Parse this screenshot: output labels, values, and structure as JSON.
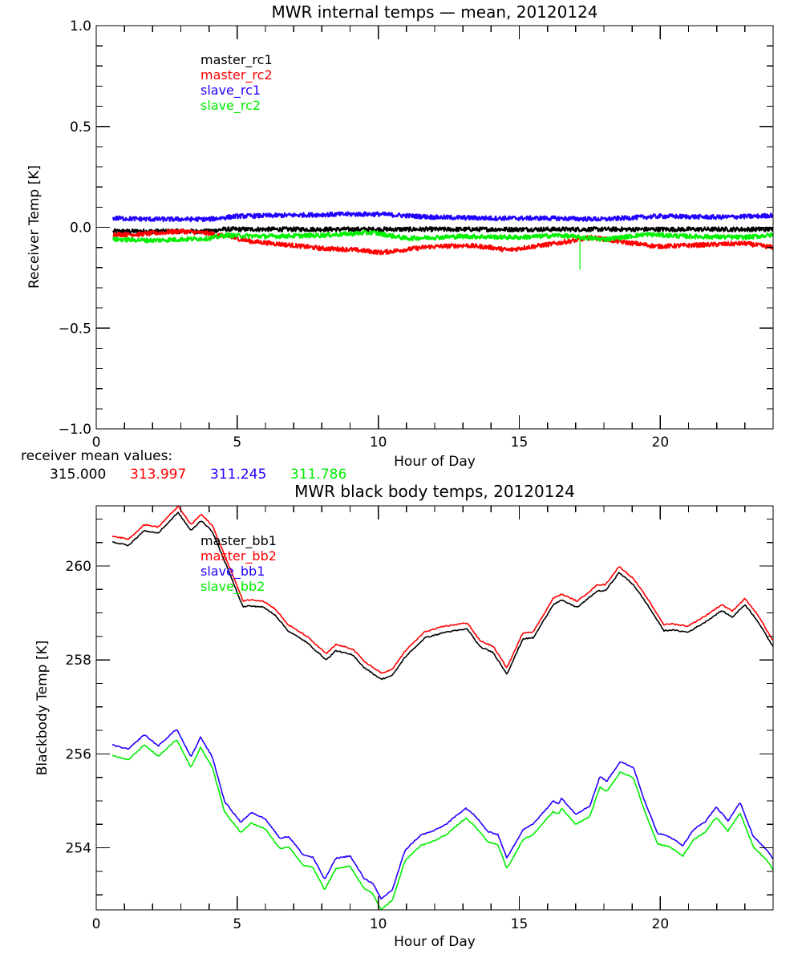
{
  "chart_data": [
    {
      "type": "line",
      "title": "MWR internal temps — mean, 20120124",
      "xlabel": "Hour of Day",
      "ylabel": "Receiver Temp [K]",
      "xlim": [
        0,
        24
      ],
      "ylim": [
        -1.0,
        1.0
      ],
      "xticks": [
        0,
        5,
        10,
        15,
        20
      ],
      "xtick_labels": [
        "0",
        "5",
        "10",
        "15",
        "20"
      ],
      "xminor_step": 1,
      "yticks": [
        -1.0,
        -0.5,
        0.0,
        0.5,
        1.0
      ],
      "ytick_labels": [
        "−1.0",
        "−0.5",
        "0.0",
        "0.5",
        "1.0"
      ],
      "yminor_step": 0.1,
      "grid": false,
      "legend_position": "top-left",
      "noisy": true,
      "series": [
        {
          "name": "master_rc1",
          "color": "#000000",
          "x": [
            0.6,
            2,
            4,
            4.5,
            6,
            8,
            10,
            12,
            14,
            16,
            18,
            20,
            22,
            24
          ],
          "y": [
            -0.02,
            -0.02,
            -0.02,
            -0.01,
            -0.01,
            -0.01,
            -0.01,
            -0.01,
            -0.01,
            -0.01,
            -0.01,
            -0.01,
            -0.01,
            -0.01
          ]
        },
        {
          "name": "master_rc2",
          "color": "#ff0000",
          "x": [
            0.6,
            1.5,
            3,
            4,
            4.6,
            5.5,
            7,
            8,
            9,
            10.1,
            11,
            11.8,
            13.1,
            14,
            14.6,
            15.5,
            16.4,
            17.6,
            18.5,
            19.9,
            21,
            22,
            23,
            24
          ],
          "y": [
            -0.035,
            -0.035,
            -0.02,
            -0.03,
            -0.045,
            -0.07,
            -0.09,
            -0.105,
            -0.11,
            -0.125,
            -0.11,
            -0.097,
            -0.09,
            -0.1,
            -0.113,
            -0.095,
            -0.078,
            -0.05,
            -0.07,
            -0.095,
            -0.09,
            -0.085,
            -0.08,
            -0.1
          ]
        },
        {
          "name": "slave_rc1",
          "color": "#2200ff",
          "x": [
            0.6,
            2,
            4,
            5,
            7,
            9,
            10,
            12,
            14,
            16,
            18,
            20,
            22,
            23.5,
            24
          ],
          "y": [
            0.045,
            0.04,
            0.04,
            0.055,
            0.06,
            0.065,
            0.065,
            0.05,
            0.045,
            0.045,
            0.04,
            0.055,
            0.05,
            0.055,
            0.06
          ]
        },
        {
          "name": "slave_rc2",
          "color": "#00ee00",
          "x": [
            0.6,
            2,
            4,
            4.6,
            6,
            8,
            9.8,
            11,
            13,
            15,
            16.4,
            18,
            19.5,
            21,
            23,
            24
          ],
          "y": [
            -0.06,
            -0.065,
            -0.055,
            -0.04,
            -0.045,
            -0.04,
            -0.026,
            -0.055,
            -0.045,
            -0.05,
            -0.04,
            -0.06,
            -0.035,
            -0.045,
            -0.05,
            -0.038
          ]
        }
      ],
      "spike": {
        "series": "slave_rc2",
        "x": 17.15,
        "y_from": -0.06,
        "y_to": -0.21
      },
      "annotation": {
        "label": "receiver mean values:",
        "values": [
          {
            "text": "315.000",
            "color": "#000000"
          },
          {
            "text": "313.997",
            "color": "#ff0000"
          },
          {
            "text": "311.245",
            "color": "#2200ff"
          },
          {
            "text": "311.786",
            "color": "#00ee00"
          }
        ]
      }
    },
    {
      "type": "line",
      "title": "MWR black body temps, 20120124",
      "xlabel": "Hour of Day",
      "ylabel": "Blackbody Temp [K]",
      "xlim": [
        0,
        24
      ],
      "ylim": [
        252.68,
        261.28
      ],
      "xticks": [
        0,
        5,
        10,
        15,
        20
      ],
      "xtick_labels": [
        "0",
        "5",
        "10",
        "15",
        "20"
      ],
      "xminor_step": 1,
      "yticks": [
        254,
        256,
        258,
        260
      ],
      "ytick_labels": [
        "254",
        "256",
        "258",
        "260"
      ],
      "yminor_step": 0.5,
      "grid": false,
      "legend_position": "top-left",
      "noisy": false,
      "series": [
        {
          "name": "master_bb1",
          "color": "#000000",
          "x": [
            0.57,
            1.14,
            1.7,
            2.2,
            2.9,
            3.36,
            3.72,
            4.12,
            4.55,
            4.92,
            5.2,
            5.4,
            5.9,
            6.34,
            6.8,
            7.45,
            8.16,
            8.5,
            9.1,
            9.5,
            10.1,
            10.5,
            10.95,
            11.65,
            12.37,
            13.16,
            13.6,
            14.07,
            14.56,
            15.13,
            15.5,
            16.2,
            16.5,
            17.06,
            17.77,
            18.05,
            18.54,
            19.05,
            19.56,
            20.13,
            20.4,
            20.98,
            21.6,
            22.18,
            22.55,
            23.0,
            23.45,
            24.0
          ],
          "y": [
            260.51,
            260.44,
            260.75,
            260.7,
            261.14,
            260.75,
            260.97,
            260.73,
            260.1,
            259.56,
            259.13,
            259.15,
            259.13,
            258.96,
            258.62,
            258.38,
            258.0,
            258.2,
            258.1,
            257.84,
            257.59,
            257.67,
            258.06,
            258.47,
            258.59,
            258.66,
            258.28,
            258.16,
            257.7,
            258.45,
            258.47,
            259.18,
            259.27,
            259.12,
            259.47,
            259.47,
            259.86,
            259.6,
            259.16,
            258.62,
            258.64,
            258.59,
            258.81,
            259.05,
            258.91,
            259.18,
            258.83,
            258.28
          ]
        },
        {
          "name": "master_bb2",
          "color": "#ff0000",
          "x": [
            0.57,
            1.14,
            1.7,
            2.2,
            2.9,
            3.36,
            3.72,
            4.12,
            4.55,
            4.92,
            5.2,
            5.4,
            5.9,
            6.34,
            6.8,
            7.45,
            8.16,
            8.5,
            9.1,
            9.5,
            10.1,
            10.5,
            10.95,
            11.65,
            12.37,
            13.16,
            13.6,
            14.07,
            14.56,
            15.13,
            15.5,
            16.2,
            16.5,
            17.06,
            17.77,
            18.05,
            18.54,
            19.05,
            19.56,
            20.13,
            20.4,
            20.98,
            21.6,
            22.18,
            22.55,
            23.0,
            23.45,
            24.0
          ],
          "y": [
            260.64,
            260.57,
            260.88,
            260.83,
            261.27,
            260.88,
            261.1,
            260.86,
            260.23,
            259.69,
            259.26,
            259.28,
            259.26,
            259.09,
            258.75,
            258.51,
            258.13,
            258.33,
            258.23,
            257.97,
            257.72,
            257.8,
            258.19,
            258.6,
            258.72,
            258.79,
            258.41,
            258.29,
            257.83,
            258.58,
            258.6,
            259.31,
            259.4,
            259.25,
            259.6,
            259.6,
            259.99,
            259.73,
            259.29,
            258.75,
            258.77,
            258.72,
            258.94,
            259.18,
            259.04,
            259.31,
            258.96,
            258.41
          ]
        },
        {
          "name": "slave_bb1",
          "color": "#2200ff",
          "x": [
            0.57,
            1.14,
            1.7,
            2.2,
            2.85,
            3.36,
            3.7,
            4.12,
            4.55,
            4.83,
            5.12,
            5.5,
            6.0,
            6.5,
            6.83,
            7.34,
            7.68,
            8.1,
            8.5,
            9.0,
            9.5,
            9.8,
            10.1,
            10.5,
            10.95,
            11.5,
            11.95,
            12.4,
            13.1,
            13.4,
            13.9,
            14.24,
            14.56,
            15.13,
            15.5,
            16.2,
            16.4,
            16.5,
            17.0,
            17.5,
            17.86,
            18.1,
            18.57,
            19.05,
            19.42,
            19.9,
            20.33,
            20.8,
            21.18,
            21.6,
            21.98,
            22.4,
            22.83,
            23.3,
            23.74,
            24.0
          ],
          "y": [
            256.19,
            256.1,
            256.41,
            256.17,
            256.53,
            255.93,
            256.36,
            255.93,
            254.99,
            254.77,
            254.55,
            254.75,
            254.62,
            254.21,
            254.24,
            253.85,
            253.8,
            253.33,
            253.78,
            253.83,
            253.35,
            253.25,
            252.91,
            253.11,
            253.95,
            254.27,
            254.36,
            254.5,
            254.85,
            254.7,
            254.34,
            254.29,
            253.78,
            254.39,
            254.51,
            255.0,
            254.94,
            255.06,
            254.72,
            254.89,
            255.52,
            255.42,
            255.83,
            255.71,
            255.04,
            254.31,
            254.24,
            254.05,
            254.39,
            254.56,
            254.87,
            254.58,
            254.96,
            254.24,
            253.98,
            253.76
          ]
        },
        {
          "name": "slave_bb2",
          "color": "#00ee00",
          "x": [
            0.57,
            1.14,
            1.7,
            2.2,
            2.85,
            3.36,
            3.7,
            4.12,
            4.55,
            4.83,
            5.12,
            5.5,
            6.0,
            6.5,
            6.83,
            7.34,
            7.68,
            8.1,
            8.5,
            9.0,
            9.5,
            9.8,
            10.1,
            10.5,
            10.95,
            11.5,
            11.95,
            12.4,
            13.1,
            13.4,
            13.9,
            14.24,
            14.56,
            15.13,
            15.5,
            16.2,
            16.4,
            16.5,
            17.0,
            17.5,
            17.86,
            18.1,
            18.57,
            19.05,
            19.42,
            19.9,
            20.33,
            20.8,
            21.18,
            21.6,
            21.98,
            22.4,
            22.83,
            23.3,
            23.74,
            24.0
          ],
          "y": [
            255.97,
            255.88,
            256.19,
            255.95,
            256.31,
            255.71,
            256.14,
            255.71,
            254.77,
            254.55,
            254.33,
            254.53,
            254.4,
            253.99,
            254.02,
            253.63,
            253.58,
            253.11,
            253.56,
            253.61,
            253.13,
            253.03,
            252.69,
            252.89,
            253.73,
            254.05,
            254.14,
            254.28,
            254.63,
            254.48,
            254.12,
            254.07,
            253.56,
            254.17,
            254.29,
            254.78,
            254.72,
            254.84,
            254.5,
            254.67,
            255.3,
            255.2,
            255.61,
            255.49,
            254.82,
            254.09,
            254.02,
            253.83,
            254.17,
            254.34,
            254.65,
            254.36,
            254.74,
            254.02,
            253.76,
            253.54
          ]
        }
      ]
    }
  ]
}
